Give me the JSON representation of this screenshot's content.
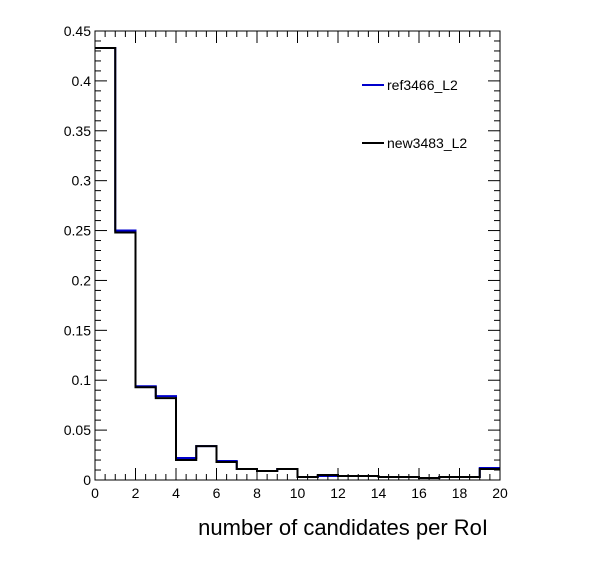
{
  "chart_data": {
    "type": "histogram-step",
    "title": "",
    "xlabel": "number of candidates per RoI",
    "ylabel": "",
    "xlim": [
      0,
      20
    ],
    "ylim": [
      0,
      0.45
    ],
    "x_ticks": [
      0,
      2,
      4,
      6,
      8,
      10,
      12,
      14,
      16,
      18,
      20
    ],
    "x_tick_labels": [
      "0",
      "2",
      "4",
      "6",
      "8",
      "10",
      "12",
      "14",
      "16",
      "18",
      "20"
    ],
    "y_ticks": [
      0,
      0.05,
      0.1,
      0.15,
      0.2,
      0.25,
      0.3,
      0.35,
      0.4,
      0.45
    ],
    "y_tick_labels": [
      "0",
      "0.05",
      "0.1",
      "0.15",
      "0.2",
      "0.25",
      "0.3",
      "0.35",
      "0.4",
      "0.45"
    ],
    "bin_edges": [
      0,
      1,
      2,
      3,
      4,
      5,
      6,
      7,
      8,
      9,
      10,
      11,
      12,
      13,
      14,
      15,
      16,
      17,
      18,
      19,
      20
    ],
    "grid": false,
    "legend_position": "top-right",
    "series": [
      {
        "name": "ref3466_L2",
        "color": "#0000cc",
        "values": [
          0.433,
          0.25,
          0.094,
          0.084,
          0.022,
          0.034,
          0.019,
          0.011,
          0.009,
          0.011,
          0.003,
          0.004,
          0.004,
          0.004,
          0.003,
          0.003,
          0.002,
          0.003,
          0.003,
          0.012
        ]
      },
      {
        "name": "new3483_L2",
        "color": "#000000",
        "values": [
          0.433,
          0.248,
          0.093,
          0.082,
          0.02,
          0.034,
          0.018,
          0.011,
          0.009,
          0.011,
          0.003,
          0.005,
          0.004,
          0.004,
          0.003,
          0.003,
          0.002,
          0.003,
          0.003,
          0.011
        ]
      }
    ]
  }
}
